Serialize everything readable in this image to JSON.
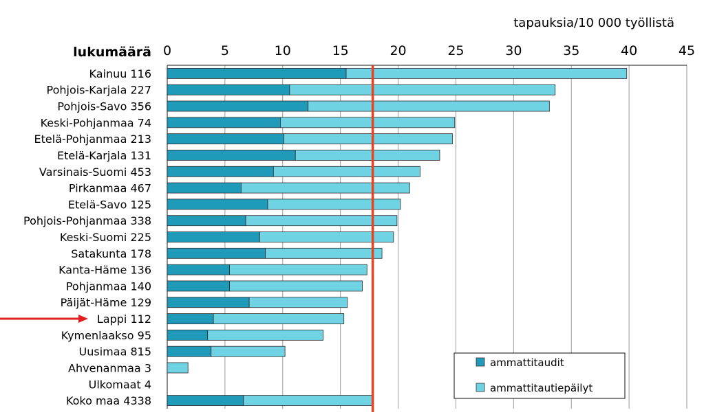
{
  "chart_data": {
    "type": "bar",
    "orientation": "horizontal",
    "stacked": true,
    "x_unit_label": "tapauksia/10 000 työllistä",
    "y_header": "lukumäärä",
    "xlim": [
      0,
      45
    ],
    "x_ticks": [
      "0",
      "5",
      "10",
      "15",
      "20",
      "25",
      "30",
      "35",
      "40",
      "45"
    ],
    "grid": true,
    "categories": [
      "Kainuu 116",
      "Pohjois-Karjala 227",
      "Pohjois-Savo 356",
      "Keski-Pohjanmaa 74",
      "Etelä-Pohjanmaa 213",
      "Etelä-Karjala 131",
      "Varsinais-Suomi 453",
      "Pirkanmaa 467",
      "Etelä-Savo 125",
      "Pohjois-Pohjanmaa 338",
      "Keski-Suomi 225",
      "Satakunta 178",
      "Kanta-Häme 136",
      "Pohjanmaa 140",
      "Päijät-Häme 129",
      "Lappi 112",
      "Kymenlaakso 95",
      "Uusimaa 815",
      "Ahvenanmaa 3",
      "Ulkomaat 4",
      "Koko maa 4338"
    ],
    "series": [
      {
        "name": "ammattitaudit",
        "color": "#1f9ab8",
        "values": [
          15.5,
          10.6,
          12.2,
          9.8,
          10.1,
          11.1,
          9.2,
          6.4,
          8.7,
          6.8,
          8.0,
          8.5,
          5.4,
          5.4,
          7.1,
          4.0,
          3.5,
          3.8,
          0,
          0,
          6.6
        ]
      },
      {
        "name": "ammattitautiepäilyt",
        "color": "#6fd3e4",
        "values": [
          24.3,
          23.0,
          20.9,
          15.1,
          14.6,
          12.5,
          12.7,
          14.6,
          11.5,
          13.1,
          11.6,
          10.1,
          11.9,
          11.5,
          8.5,
          11.3,
          10.0,
          6.4,
          1.8,
          0,
          11.2
        ]
      }
    ],
    "reference_line": {
      "value": 17.8,
      "color": "#e8421e"
    },
    "highlight_category": "Lappi 112",
    "highlight_arrow_color": "#e02020",
    "legend_position": "bottom-right"
  }
}
